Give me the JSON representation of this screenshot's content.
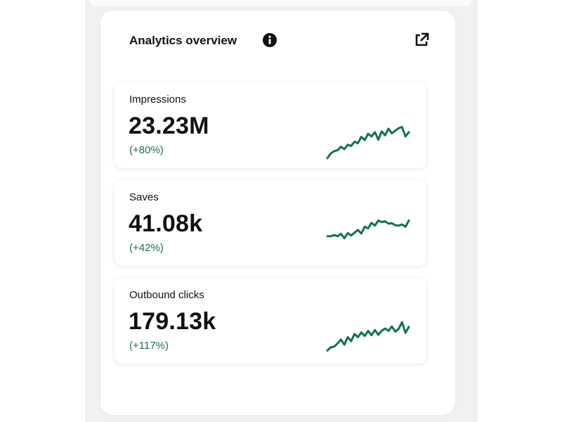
{
  "panel": {
    "title": "Analytics overview",
    "info_icon": "info-icon",
    "external_icon": "external-link-icon"
  },
  "metrics": [
    {
      "label": "Impressions",
      "value": "23.23M",
      "change": "(+80%)",
      "trend": [
        2,
        14,
        20,
        22,
        31,
        25,
        36,
        33,
        44,
        40,
        56,
        48,
        64,
        57,
        68,
        49,
        70,
        60,
        77,
        65,
        72,
        78,
        81,
        57,
        68
      ]
    },
    {
      "label": "Saves",
      "value": "41.08k",
      "change": "(+42%)",
      "trend": [
        52,
        52,
        55,
        52,
        58,
        47,
        60,
        54,
        61,
        68,
        59,
        76,
        72,
        86,
        79,
        92,
        88,
        90,
        84,
        85,
        80,
        79,
        82,
        76,
        92
      ]
    },
    {
      "label": "Outbound clicks",
      "value": "179.13k",
      "change": "(+117%)",
      "trend": [
        10,
        18,
        20,
        28,
        38,
        25,
        44,
        34,
        52,
        44,
        56,
        47,
        60,
        49,
        62,
        50,
        60,
        66,
        60,
        71,
        58,
        65,
        82,
        55,
        70
      ]
    }
  ],
  "colors": {
    "accent": "#12734c",
    "change_text": "#1e6f4d",
    "panel_bg": "#ffffff",
    "page_bg": "#f1f1f1"
  }
}
